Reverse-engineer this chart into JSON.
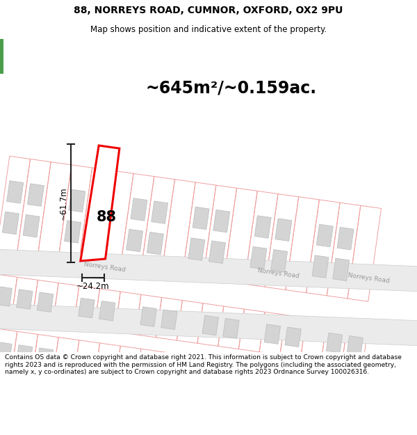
{
  "title_line1": "88, NORREYS ROAD, CUMNOR, OXFORD, OX2 9PU",
  "title_line2": "Map shows position and indicative extent of the property.",
  "area_text": "~645m²/~0.159ac.",
  "label_88": "88",
  "dim_vertical": "~61.7m",
  "dim_horizontal": "~24.2m",
  "road_label1": "Norreys Road",
  "road_label2": "Norreys Road",
  "road_label3": "Norreys Road",
  "footer_text": "Contains OS data © Crown copyright and database right 2021. This information is subject to Crown copyright and database rights 2023 and is reproduced with the permission of HM Land Registry. The polygons (including the associated geometry, namely x, y co-ordinates) are subject to Crown copyright and database rights 2023 Ordnance Survey 100026316.",
  "bg_color": "#ffffff",
  "map_bg": "#ffffff",
  "road_fill": "#ebebeb",
  "road_edge": "#cccccc",
  "plot_outline_color": "#f0a0a0",
  "highlighted_plot_color": "#ee0000",
  "building_fill": "#d4d4d4",
  "building_outline": "#bbbbbb",
  "dim_line_color": "#222222",
  "title_color": "#000000",
  "footer_color": "#000000",
  "green_color": "#4a9e4a",
  "map_white": "#ffffff"
}
